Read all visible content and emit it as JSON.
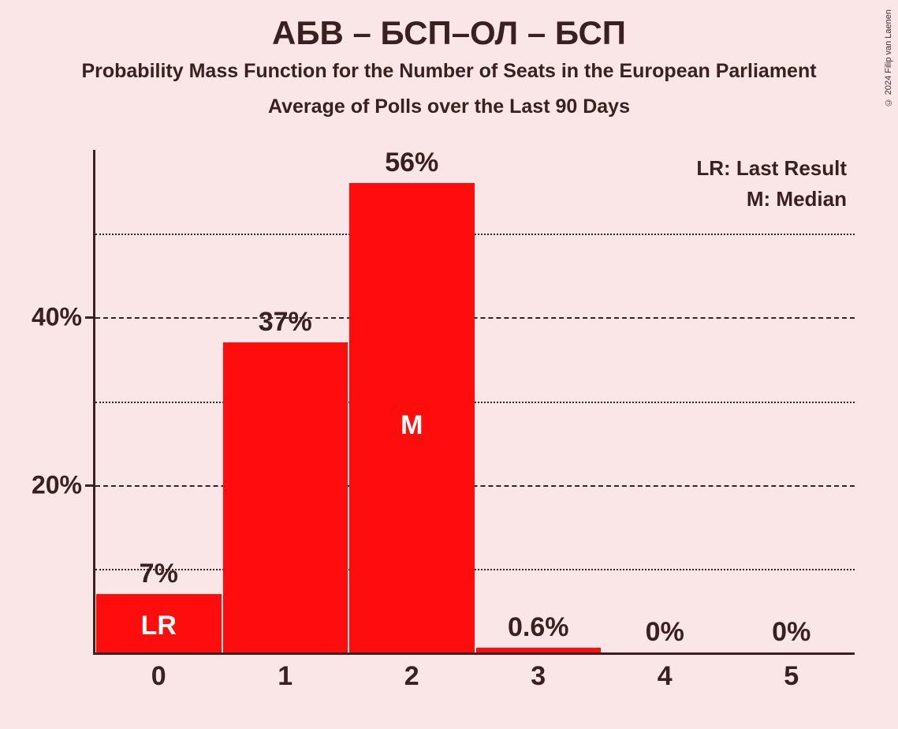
{
  "copyright": "© 2024 Filip van Laenen",
  "title": "АБВ – БСП–ОЛ – БСП",
  "subtitle1": "Probability Mass Function for the Number of Seats in the European Parliament",
  "subtitle2": "Average of Polls over the Last 90 Days",
  "legend": {
    "lr": "LR: Last Result",
    "m": "M: Median"
  },
  "chart": {
    "type": "bar",
    "bar_color": "#ff0d0d",
    "background_color": "#fae6e6",
    "axis_color": "#3a2020",
    "grid_color": "#3a2020",
    "text_color": "#3a2020",
    "ylim_max": 60,
    "y_ticks": [
      {
        "value": 40,
        "label": "40%",
        "major": true
      },
      {
        "value": 20,
        "label": "20%",
        "major": true
      }
    ],
    "y_minor_ticks": [
      50,
      30,
      10
    ],
    "categories": [
      "0",
      "1",
      "2",
      "3",
      "4",
      "5"
    ],
    "values": [
      7,
      37,
      56,
      0.6,
      0,
      0
    ],
    "value_labels": [
      "7%",
      "37%",
      "56%",
      "0.6%",
      "0%",
      "0%"
    ],
    "inner_labels": [
      "LR",
      "",
      "M",
      "",
      "",
      ""
    ],
    "title_fontsize": 42,
    "subtitle_fontsize": 25,
    "axis_label_fontsize": 32,
    "bar_label_fontsize": 34,
    "legend_fontsize": 26,
    "bar_width": 0.98
  }
}
